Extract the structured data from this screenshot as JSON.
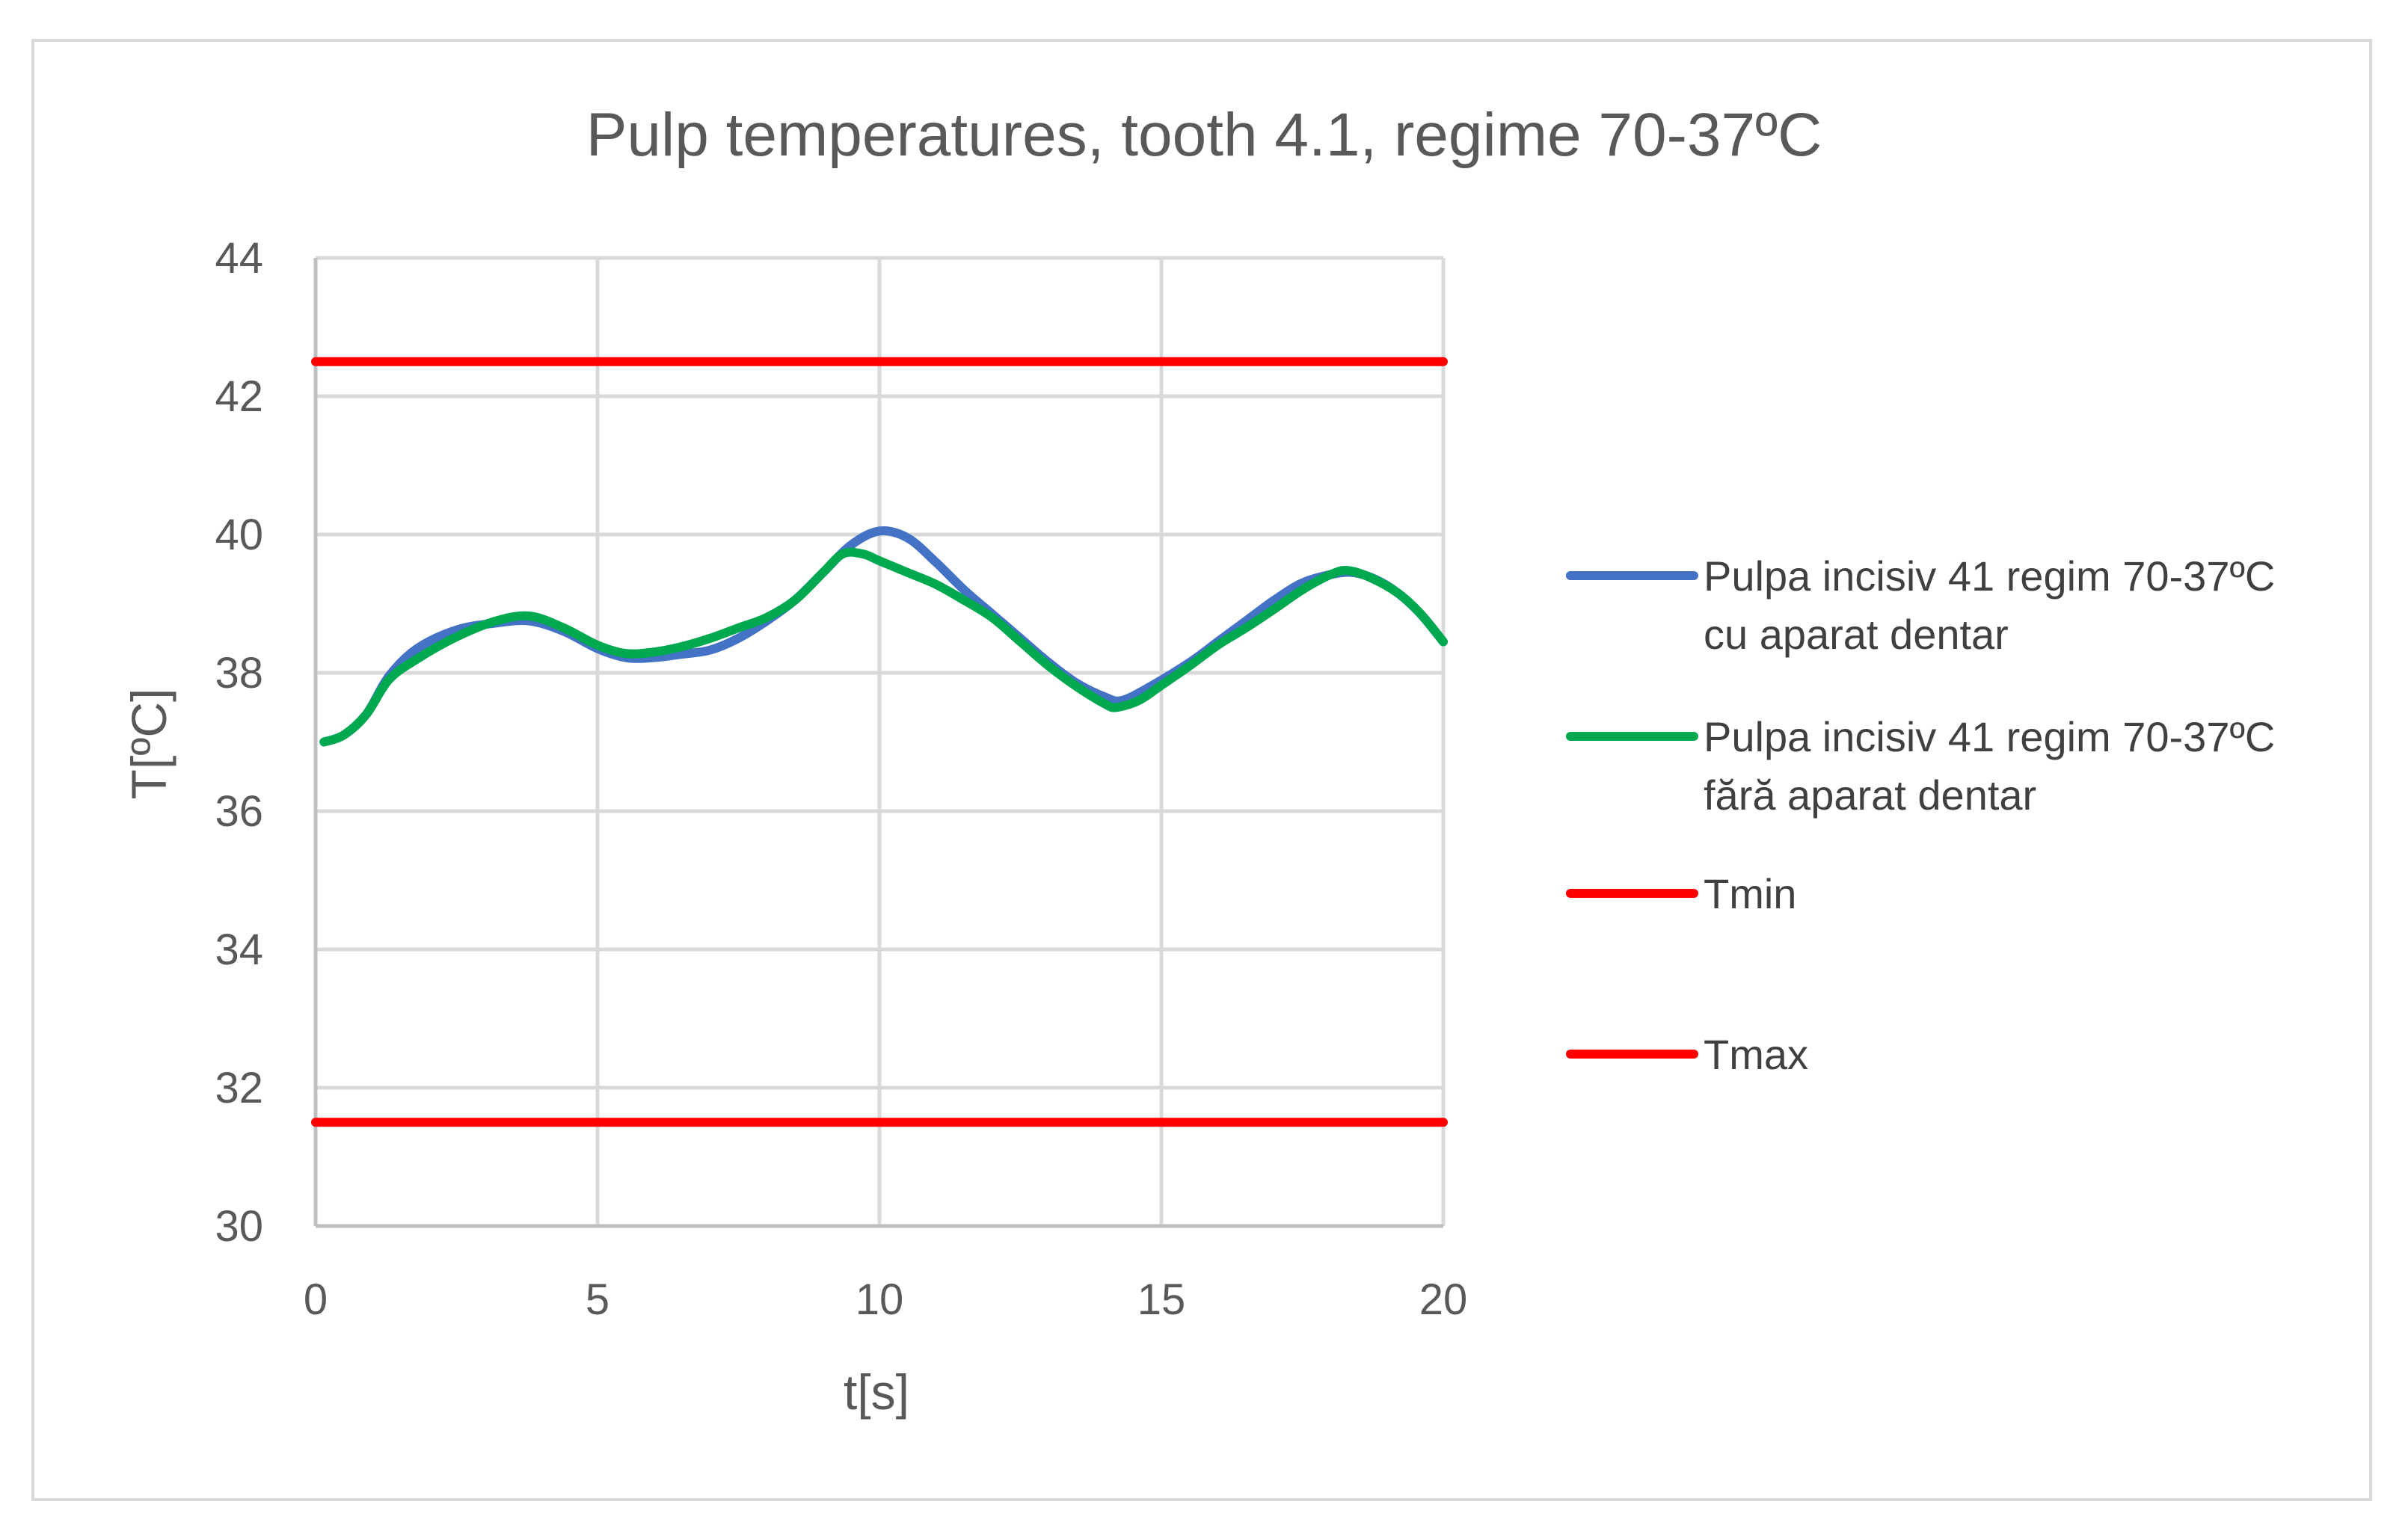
{
  "chart_data": {
    "type": "line",
    "title": "Pulp temperatures, tooth 4.1, regime 70-37ºC",
    "xlabel": "t[s]",
    "ylabel": "T[ºC]",
    "xlim": [
      0,
      20
    ],
    "ylim": [
      30,
      44
    ],
    "x_ticks": [
      "0",
      "5",
      "10",
      "15",
      "20"
    ],
    "y_ticks": [
      "30",
      "32",
      "34",
      "36",
      "38",
      "40",
      "42",
      "44"
    ],
    "grid": true,
    "legend_position": "right",
    "series": [
      {
        "name": "Pulpa incisiv 41 regim 70-37ºC cu aparat dentar",
        "legend_lines": [
          "Pulpa incisiv 41 regim 70-37ºC",
          "cu aparat dentar"
        ],
        "color": "#4472c4",
        "points": [
          [
            0.15,
            37.0
          ],
          [
            0.5,
            37.1
          ],
          [
            0.9,
            37.4
          ],
          [
            1.3,
            37.95
          ],
          [
            1.8,
            38.35
          ],
          [
            2.5,
            38.62
          ],
          [
            3.2,
            38.72
          ],
          [
            3.8,
            38.75
          ],
          [
            4.4,
            38.6
          ],
          [
            5.0,
            38.35
          ],
          [
            5.5,
            38.22
          ],
          [
            6.0,
            38.22
          ],
          [
            6.5,
            38.27
          ],
          [
            7.0,
            38.33
          ],
          [
            7.5,
            38.5
          ],
          [
            8.0,
            38.75
          ],
          [
            8.5,
            39.05
          ],
          [
            9.0,
            39.45
          ],
          [
            9.5,
            39.85
          ],
          [
            10.0,
            40.05
          ],
          [
            10.5,
            39.95
          ],
          [
            11.0,
            39.6
          ],
          [
            11.5,
            39.2
          ],
          [
            12.0,
            38.85
          ],
          [
            12.5,
            38.5
          ],
          [
            13.0,
            38.15
          ],
          [
            13.5,
            37.85
          ],
          [
            14.0,
            37.65
          ],
          [
            14.3,
            37.6
          ],
          [
            14.8,
            37.8
          ],
          [
            15.5,
            38.15
          ],
          [
            16.0,
            38.45
          ],
          [
            16.5,
            38.75
          ],
          [
            17.0,
            39.05
          ],
          [
            17.5,
            39.3
          ],
          [
            18.0,
            39.42
          ],
          [
            18.4,
            39.45
          ],
          [
            18.8,
            39.35
          ],
          [
            19.2,
            39.15
          ],
          [
            19.6,
            38.85
          ],
          [
            20.0,
            38.45
          ]
        ]
      },
      {
        "name": "Pulpa incisiv 41 regim 70-37ºC fără aparat dentar",
        "legend_lines": [
          "Pulpa incisiv 41 regim 70-37ºC",
          "fără aparat dentar"
        ],
        "color": "#00a84f",
        "points": [
          [
            0.15,
            37.0
          ],
          [
            0.5,
            37.1
          ],
          [
            0.9,
            37.4
          ],
          [
            1.3,
            37.9
          ],
          [
            1.8,
            38.2
          ],
          [
            2.5,
            38.52
          ],
          [
            3.2,
            38.75
          ],
          [
            3.8,
            38.82
          ],
          [
            4.4,
            38.65
          ],
          [
            5.0,
            38.4
          ],
          [
            5.5,
            38.28
          ],
          [
            6.0,
            38.3
          ],
          [
            6.5,
            38.38
          ],
          [
            7.0,
            38.5
          ],
          [
            7.5,
            38.65
          ],
          [
            8.0,
            38.8
          ],
          [
            8.5,
            39.05
          ],
          [
            9.0,
            39.45
          ],
          [
            9.35,
            39.72
          ],
          [
            9.7,
            39.72
          ],
          [
            10.0,
            39.62
          ],
          [
            10.5,
            39.45
          ],
          [
            11.0,
            39.28
          ],
          [
            11.5,
            39.05
          ],
          [
            12.0,
            38.8
          ],
          [
            12.5,
            38.45
          ],
          [
            13.0,
            38.1
          ],
          [
            13.5,
            37.8
          ],
          [
            14.0,
            37.55
          ],
          [
            14.2,
            37.5
          ],
          [
            14.6,
            37.6
          ],
          [
            15.0,
            37.82
          ],
          [
            15.5,
            38.1
          ],
          [
            16.0,
            38.4
          ],
          [
            16.5,
            38.65
          ],
          [
            17.0,
            38.92
          ],
          [
            17.5,
            39.2
          ],
          [
            18.0,
            39.42
          ],
          [
            18.3,
            39.48
          ],
          [
            18.7,
            39.38
          ],
          [
            19.2,
            39.15
          ],
          [
            19.6,
            38.85
          ],
          [
            20.0,
            38.45
          ]
        ]
      },
      {
        "name": "Tmin",
        "legend_lines": [
          "Tmin"
        ],
        "color": "#ff0000",
        "points": [
          [
            0.0,
            42.5
          ],
          [
            20.0,
            42.5
          ]
        ]
      },
      {
        "name": "Tmax",
        "legend_lines": [
          "Tmax"
        ],
        "color": "#ff0000",
        "points": [
          [
            0.0,
            31.5
          ],
          [
            20.0,
            31.5
          ]
        ]
      }
    ]
  }
}
